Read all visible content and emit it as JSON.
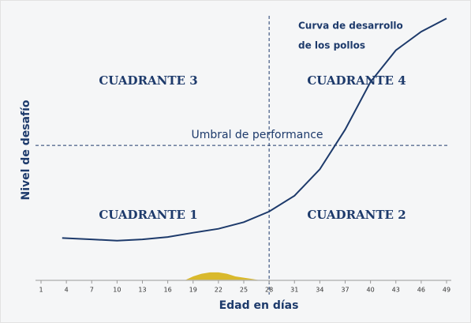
{
  "chart_data": {
    "type": "line",
    "curve_label": [
      "Curva de desarrollo",
      "de los pollos"
    ],
    "threshold_label": "Umbral de performance",
    "quadrants": [
      "CUADRANTE 1",
      "CUADRANTE 2",
      "CUADRANTE 3",
      "CUADRANTE 4"
    ],
    "x_label": "Edad en días",
    "y_label": "Nivel de desafío",
    "xlim": [
      1,
      49
    ],
    "xticks": [
      1,
      4,
      7,
      10,
      13,
      16,
      19,
      22,
      25,
      28,
      31,
      34,
      37,
      40,
      43,
      46,
      49
    ],
    "ylim": [
      0,
      100
    ],
    "threshold": 51,
    "divider_x": 28,
    "series": [
      {
        "color": "#1d3a6b",
        "x": [
          3.5,
          7,
          10,
          13,
          16,
          19,
          22,
          25,
          28,
          31,
          34,
          37,
          40,
          43,
          46,
          49
        ],
        "values": [
          16,
          15.5,
          15,
          15.5,
          16.4,
          18,
          19.5,
          22,
          26,
          32,
          42,
          57,
          75,
          87,
          94,
          99
        ]
      },
      {
        "color": "#d9b92c",
        "fill": true,
        "x": [
          18,
          19,
          20,
          21,
          22,
          23,
          24,
          25,
          26,
          27
        ],
        "values": [
          0,
          1.5,
          2.5,
          3,
          3,
          2.5,
          1.5,
          1,
          0.5,
          0
        ]
      }
    ]
  }
}
